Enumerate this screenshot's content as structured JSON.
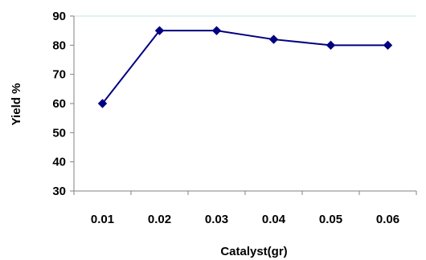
{
  "chart_data": {
    "type": "line",
    "title": "",
    "xlabel": "Catalyst(gr)",
    "ylabel": "Yield %",
    "categories": [
      "0.01",
      "0.02",
      "0.03",
      "0.04",
      "0.05",
      "0.06"
    ],
    "series": [
      {
        "values": [
          60,
          85,
          85,
          82,
          80,
          80
        ],
        "color": "#000080",
        "marker": "diamond"
      }
    ],
    "yticks": [
      "30",
      "40",
      "50",
      "60",
      "70",
      "80",
      "90"
    ],
    "ylim": [
      30,
      90
    ],
    "grid": false,
    "legend": "none"
  }
}
